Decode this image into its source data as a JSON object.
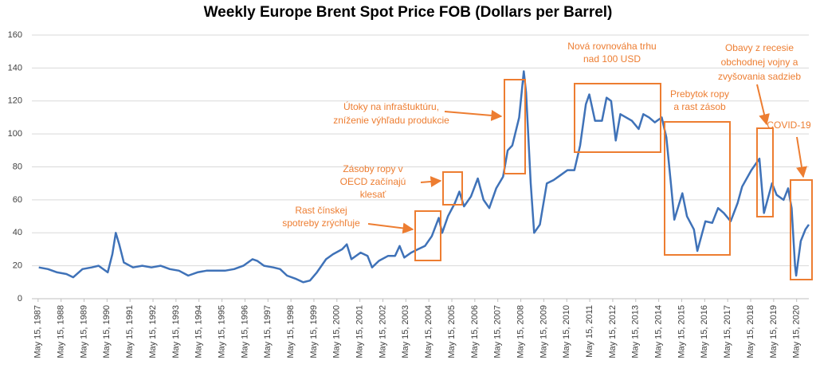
{
  "chart_data": {
    "type": "line",
    "title": "Weekly Europe Brent Spot Price FOB  (Dollars per Barrel)",
    "color": "#3F72B8",
    "grid": true,
    "ylim": [
      0,
      160
    ],
    "yticks": [
      0,
      20,
      40,
      60,
      80,
      100,
      120,
      140,
      160
    ],
    "xlim": [
      1987.1,
      2020.9
    ],
    "xticks": [
      {
        "value": 1987.37,
        "label": "May 15, 1987"
      },
      {
        "value": 1988.37,
        "label": "May 15, 1988"
      },
      {
        "value": 1989.37,
        "label": "May 15, 1989"
      },
      {
        "value": 1990.37,
        "label": "May 15, 1990"
      },
      {
        "value": 1991.37,
        "label": "May 15, 1991"
      },
      {
        "value": 1992.37,
        "label": "May 15, 1992"
      },
      {
        "value": 1993.37,
        "label": "May 15, 1993"
      },
      {
        "value": 1994.37,
        "label": "May 15, 1994"
      },
      {
        "value": 1995.37,
        "label": "May 15, 1995"
      },
      {
        "value": 1996.37,
        "label": "May 15, 1996"
      },
      {
        "value": 1997.37,
        "label": "May 15, 1997"
      },
      {
        "value": 1998.37,
        "label": "May 15, 1998"
      },
      {
        "value": 1999.37,
        "label": "May 15, 1999"
      },
      {
        "value": 2000.37,
        "label": "May 15, 2000"
      },
      {
        "value": 2001.37,
        "label": "May 15, 2001"
      },
      {
        "value": 2002.37,
        "label": "May 15, 2002"
      },
      {
        "value": 2003.37,
        "label": "May 15, 2003"
      },
      {
        "value": 2004.37,
        "label": "May 15, 2004"
      },
      {
        "value": 2005.37,
        "label": "May 15, 2005"
      },
      {
        "value": 2006.37,
        "label": "May 15, 2006"
      },
      {
        "value": 2007.37,
        "label": "May 15, 2007"
      },
      {
        "value": 2008.37,
        "label": "May 15, 2008"
      },
      {
        "value": 2009.37,
        "label": "May 15, 2009"
      },
      {
        "value": 2010.37,
        "label": "May 15, 2010"
      },
      {
        "value": 2011.37,
        "label": "May 15, 2011"
      },
      {
        "value": 2012.37,
        "label": "May 15, 2012"
      },
      {
        "value": 2013.37,
        "label": "May 15, 2013"
      },
      {
        "value": 2014.37,
        "label": "May 15, 2014"
      },
      {
        "value": 2015.37,
        "label": "May 15, 2015"
      },
      {
        "value": 2016.37,
        "label": "May 15, 2016"
      },
      {
        "value": 2017.37,
        "label": "May 15, 2017"
      },
      {
        "value": 2018.37,
        "label": "May 15, 2018"
      },
      {
        "value": 2019.37,
        "label": "May 15, 2019"
      },
      {
        "value": 2020.37,
        "label": "May 15, 2020"
      }
    ],
    "x": [
      1987.4,
      1987.8,
      1988.2,
      1988.6,
      1988.9,
      1989.3,
      1989.7,
      1990.0,
      1990.4,
      1990.6,
      1990.75,
      1990.9,
      1991.1,
      1991.5,
      1991.9,
      1992.3,
      1992.7,
      1993.1,
      1993.5,
      1993.9,
      1994.3,
      1994.7,
      1995.1,
      1995.5,
      1995.9,
      1996.3,
      1996.7,
      1996.9,
      1997.2,
      1997.6,
      1997.9,
      1998.2,
      1998.6,
      1998.9,
      1999.2,
      1999.5,
      1999.9,
      2000.2,
      2000.6,
      2000.8,
      2001.0,
      2001.4,
      2001.7,
      2001.9,
      2002.2,
      2002.6,
      2002.9,
      2003.1,
      2003.3,
      2003.6,
      2003.9,
      2004.2,
      2004.5,
      2004.8,
      2004.95,
      2005.2,
      2005.5,
      2005.7,
      2005.9,
      2006.2,
      2006.5,
      2006.75,
      2007.0,
      2007.3,
      2007.6,
      2007.8,
      2008.0,
      2008.3,
      2008.5,
      2008.6,
      2008.8,
      2008.95,
      2009.2,
      2009.5,
      2009.8,
      2010.1,
      2010.4,
      2010.7,
      2010.95,
      2011.2,
      2011.35,
      2011.6,
      2011.9,
      2012.1,
      2012.3,
      2012.5,
      2012.7,
      2012.95,
      2013.2,
      2013.5,
      2013.7,
      2013.95,
      2014.2,
      2014.5,
      2014.7,
      2014.9,
      2015.05,
      2015.4,
      2015.6,
      2015.9,
      2016.05,
      2016.4,
      2016.7,
      2016.95,
      2017.2,
      2017.5,
      2017.8,
      2018.0,
      2018.4,
      2018.75,
      2018.95,
      2019.3,
      2019.5,
      2019.8,
      2020.0,
      2020.15,
      2020.3,
      2020.35,
      2020.55,
      2020.75,
      2020.9
    ],
    "values": [
      19,
      18,
      16,
      15,
      13,
      18,
      19,
      20,
      16,
      27,
      40,
      33,
      22,
      19,
      20,
      19,
      20,
      18,
      17,
      14,
      16,
      17,
      17,
      17,
      18,
      20,
      24,
      23,
      20,
      19,
      18,
      14,
      12,
      10,
      11,
      16,
      24,
      27,
      30,
      33,
      24,
      28,
      26,
      19,
      23,
      26,
      26,
      32,
      25,
      28,
      30,
      32,
      38,
      49,
      40,
      50,
      58,
      65,
      56,
      62,
      73,
      60,
      55,
      67,
      74,
      90,
      93,
      110,
      138,
      125,
      70,
      40,
      45,
      70,
      72,
      75,
      78,
      78,
      93,
      118,
      124,
      108,
      108,
      122,
      120,
      96,
      112,
      110,
      108,
      103,
      112,
      110,
      107,
      110,
      98,
      70,
      48,
      64,
      50,
      42,
      29,
      47,
      46,
      55,
      52,
      47,
      58,
      68,
      78,
      85,
      52,
      70,
      63,
      60,
      67,
      55,
      20,
      14,
      35,
      42,
      45
    ],
    "annotations": [
      {
        "text": [
          "Rast čínskej",
          "spotreby zrýchľuje"
        ]
      },
      {
        "text": [
          "Zásoby ropy v",
          "OECD začínajú",
          "klesať"
        ]
      },
      {
        "text": [
          "Útoky na infraštuktúru,",
          "zníženie výhľadu produkcie"
        ]
      },
      {
        "text": [
          "Nová rovnováha trhu",
          "nad 100 USD"
        ]
      },
      {
        "text": [
          "Prebytok ropy",
          "a rast zásob"
        ]
      },
      {
        "text": [
          "Obavy z recesie",
          "obchodnej vojny a",
          "zvyšovania sadzieb"
        ]
      },
      {
        "text": [
          "COVID-19"
        ]
      }
    ]
  }
}
